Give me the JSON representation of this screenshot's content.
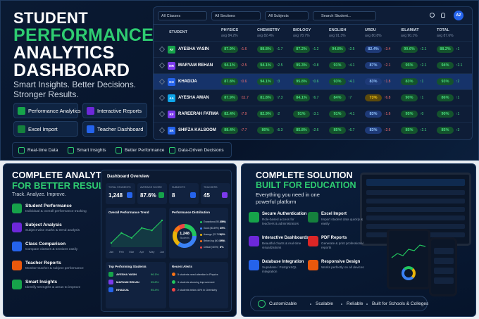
{
  "hero": {
    "title_lines": [
      "STUDENT",
      "PERFORMANCE",
      "ANALYTICS",
      "DASHBOARD"
    ],
    "tagline": "Smart Insights. Better Decisions. Stronger Results.",
    "buttons": [
      "Performance Analytics",
      "Interactive Reports",
      "Excel Import",
      "Teacher Dashboard"
    ],
    "highlights": [
      "Real-time Data",
      "Smart Insights",
      "Better Performance",
      "Data-Driven Decisions"
    ]
  },
  "table": {
    "filters": [
      "All Classes",
      "All Sections",
      "All Subjects",
      "Search Student..."
    ],
    "user_initials": "AZ",
    "student_header": "STUDENT",
    "columns": [
      {
        "name": "PHYSICS",
        "avg": "avg 84.2%"
      },
      {
        "name": "CHEMISTRY",
        "avg": "avg 82.4%"
      },
      {
        "name": "BIOLOGY",
        "avg": "avg 78.7%"
      },
      {
        "name": "ENGLISH",
        "avg": "avg 91.3%"
      },
      {
        "name": "URDU",
        "avg": "avg 80.8%"
      },
      {
        "name": "ISLAMIAT",
        "avg": "avg 90.1%"
      },
      {
        "name": "TOTAL",
        "avg": "avg 87.6%"
      }
    ],
    "rows": [
      {
        "initials": "AY",
        "name": "AYESHA YASIN",
        "cells": [
          [
            "87.9%",
            "↑1.6"
          ],
          [
            "88.8%",
            "↑1.7"
          ],
          [
            "87.2%",
            "↑1.2"
          ],
          [
            "94.8%",
            "↑2.5"
          ],
          [
            "82.4%",
            "↑3.4"
          ],
          [
            "90.6%",
            "↑2.1"
          ],
          [
            "88.2%",
            "↑1"
          ]
        ]
      },
      {
        "initials": "MR",
        "name": "MARYAM REHAN",
        "cells": [
          [
            "94.1%",
            "↑2.5"
          ],
          [
            "94.1%",
            "↑2.5"
          ],
          [
            "95.3%",
            "↑0.8"
          ],
          [
            "91%",
            "↑4.1"
          ],
          [
            "87%",
            "↑2.1"
          ],
          [
            "95%",
            "↑2.1"
          ],
          [
            "94%",
            "↑2.1"
          ]
        ]
      },
      {
        "initials": "KH",
        "name": "KHADIJA",
        "cells": [
          [
            "87.8%",
            "↑0.6"
          ],
          [
            "94.1%",
            "↑3"
          ],
          [
            "95.8%",
            "↑0.6"
          ],
          [
            "93%",
            "↑4.1"
          ],
          [
            "83%",
            "↑1.8"
          ],
          [
            "83%",
            "↑1"
          ],
          [
            "93%",
            "↑2"
          ]
        ]
      },
      {
        "initials": "AA",
        "name": "AYESHA AMAN",
        "cells": [
          [
            "87.9%",
            "↑11.7"
          ],
          [
            "81.8%",
            "↑7.3"
          ],
          [
            "84.1%",
            "↑6.7"
          ],
          [
            "84%",
            "↑7"
          ],
          [
            "73%",
            "↑6.8"
          ],
          [
            "90%",
            "↑1"
          ],
          [
            "86%",
            "↑1"
          ]
        ]
      },
      {
        "initials": "RF",
        "name": "RAREERAH FATIMA",
        "cells": [
          [
            "82.4%",
            "↑7.9"
          ],
          [
            "82.9%",
            "↑2"
          ],
          [
            "91%",
            "↑3.1"
          ],
          [
            "91%",
            "↑4.1"
          ],
          [
            "83%",
            "↑1.6"
          ],
          [
            "95%",
            "↑0"
          ],
          [
            "90%",
            "↑1"
          ]
        ]
      },
      {
        "initials": "SK",
        "name": "SHIFZA KALSOOM",
        "cells": [
          [
            "88.4%",
            "↑7.7"
          ],
          [
            "80%",
            "↑5.3"
          ],
          [
            "85.8%",
            "↑2.6"
          ],
          [
            "85%",
            "↑6.7"
          ],
          [
            "83%",
            "↑2.6"
          ],
          [
            "85%",
            "↑2.1"
          ],
          [
            "85%",
            "↑3"
          ]
        ]
      }
    ]
  },
  "analytics": {
    "title": "COMPLETE ANALYTICS",
    "subtitle": "FOR BETTER RESULTS",
    "tagline": "Track. Analyze. Improve.",
    "features": [
      {
        "title": "Student Performance",
        "desc": "Individual & overall performance tracking"
      },
      {
        "title": "Subject Analysis",
        "desc": "Subject-wise marks & trend analysis"
      },
      {
        "title": "Class Comparison",
        "desc": "Compare classes & sections easily"
      },
      {
        "title": "Teacher Reports",
        "desc": "Monitor teacher & subject performance"
      },
      {
        "title": "Smart Insights",
        "desc": "Identify strengths & areas to improve"
      }
    ],
    "dashboard": {
      "title": "Dashboard Overview",
      "stats": [
        {
          "label": "TOTAL STUDENTS",
          "value": "1,248"
        },
        {
          "label": "AVERAGE SCORE",
          "value": "87.6%"
        },
        {
          "label": "SUBJECTS",
          "value": "8"
        },
        {
          "label": "TEACHERS",
          "value": "45"
        }
      ],
      "trend": {
        "title": "Overall Performance Trend",
        "categories": [
          "Jan",
          "Feb",
          "Mar",
          "Apr",
          "May",
          "Jun"
        ],
        "values": [
          80,
          84,
          82,
          86,
          85,
          89
        ],
        "color": "#22c55e"
      },
      "distribution": {
        "title": "Performance Distribution",
        "center_value": "1,248",
        "center_label": "Students",
        "categories": [
          "Exceptional (90-100%)",
          "Good (80-89%)",
          "Average (70-79%)",
          "Below Avg (60-69%)",
          "Critical (<60%)"
        ],
        "values": [
          25,
          35,
          22,
          10,
          8
        ],
        "value_labels": [
          "25%",
          "35%",
          "22%",
          "10%",
          "8%"
        ],
        "colors": [
          "#22c55e",
          "#3b82f6",
          "#eab308",
          "#f97316",
          "#ef4444"
        ]
      },
      "top_students": {
        "title": "Top Performing Students",
        "rows": [
          [
            "AYESHA YASIN",
            "96.1%"
          ],
          [
            "MARYAM REHAN",
            "95.8%"
          ],
          [
            "KHADIJA",
            "95.4%"
          ]
        ]
      },
      "alerts": {
        "title": "Recent Alerts",
        "items": [
          "5 students need attention in Physics",
          "3 students showing improvement",
          "2 students below 40% in Chemistry"
        ]
      }
    }
  },
  "solution": {
    "title": "COMPLETE SOLUTION",
    "subtitle": "BUILT FOR EDUCATION",
    "tagline": "Everything you need in one powerful platform",
    "features": [
      {
        "title": "Secure Authentication",
        "desc": "Role-based access for teachers & administrators"
      },
      {
        "title": "Excel Import",
        "desc": "Import student data quickly & easily"
      },
      {
        "title": "Interactive Dashboards",
        "desc": "Beautiful charts & real-time visualizations"
      },
      {
        "title": "PDF Reports",
        "desc": "Generate & print professional reports"
      },
      {
        "title": "Database Integration",
        "desc": "Supabase / PostgreSQL integration"
      },
      {
        "title": "Responsive Design",
        "desc": "Works perfectly on all devices"
      }
    ],
    "footer": [
      "Customizable",
      "Scalable",
      "Reliable",
      "Built for Schools & Colleges"
    ]
  }
}
